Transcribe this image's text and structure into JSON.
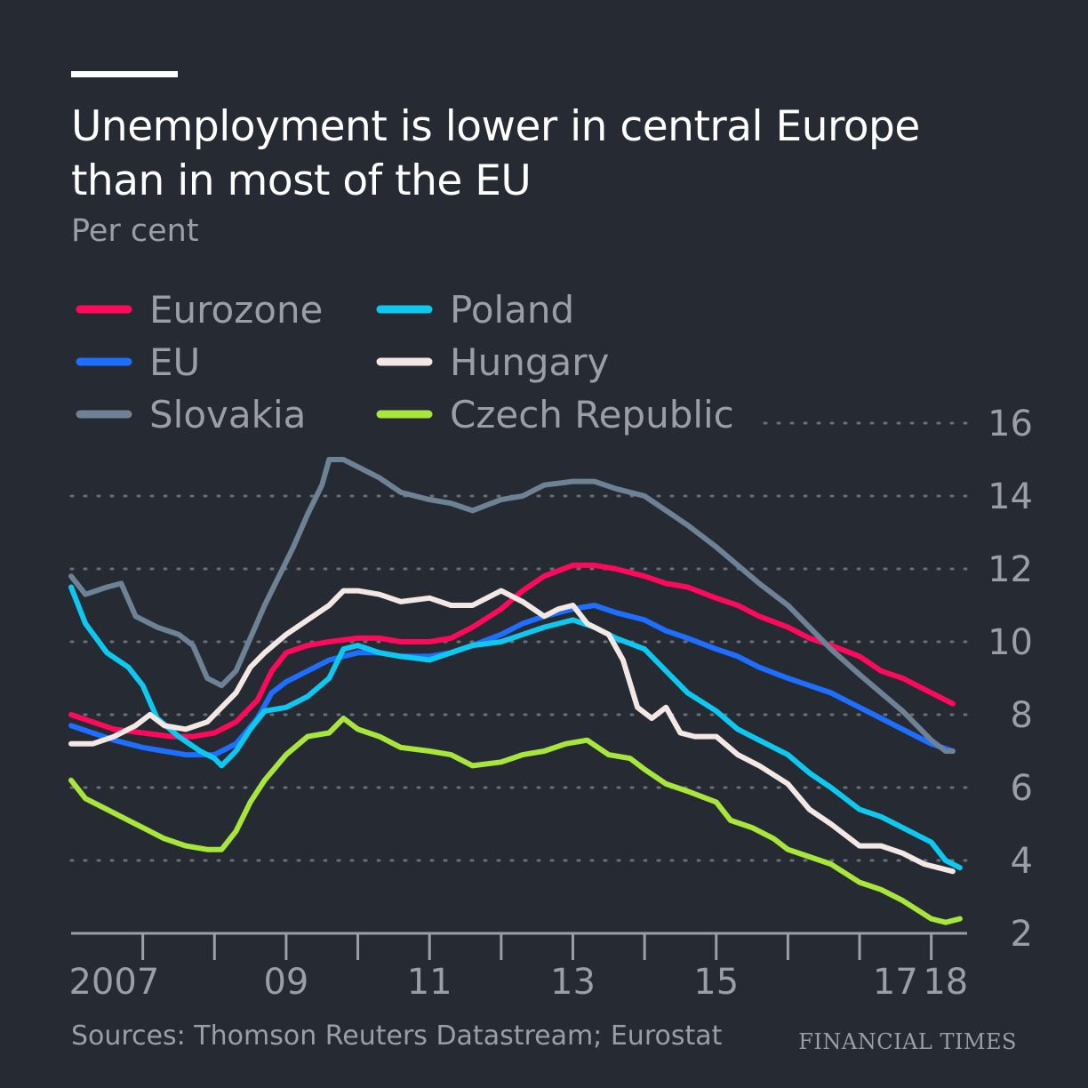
{
  "header": {
    "title": "Unemployment is lower in central Europe than in most of the EU",
    "subtitle": "Per cent"
  },
  "footer": {
    "source": "Sources: Thomson Reuters Datastream; Eurostat",
    "brand": "FINANCIAL TIMES"
  },
  "colors": {
    "background": "#262a33",
    "grid": "#6b6e75",
    "axis": "#9b9ea4",
    "text": "#9b9ea4"
  },
  "chart_data": {
    "type": "line",
    "title": "Unemployment is lower in central Europe than in most of the EU",
    "ylabel": "Per cent",
    "xlabel": "",
    "ylim": [
      2,
      16
    ],
    "xlim": [
      2006.0,
      2018.5
    ],
    "y_ticks": [
      2,
      4,
      6,
      8,
      10,
      12,
      14,
      16
    ],
    "y_tick_labels": [
      "2",
      "4",
      "6",
      "8",
      "10",
      "12",
      "14",
      "16"
    ],
    "x_ticks": [
      2007,
      2008,
      2009,
      2010,
      2011,
      2012,
      2013,
      2014,
      2015,
      2016,
      2017,
      2018
    ],
    "x_tick_labels": [
      {
        "label": "2007",
        "x": 2006.6
      },
      {
        "label": "09",
        "x": 2009.0
      },
      {
        "label": "11",
        "x": 2011.0
      },
      {
        "label": "13",
        "x": 2013.0
      },
      {
        "label": "15",
        "x": 2015.0
      },
      {
        "label": "17",
        "x": 2017.5
      },
      {
        "label": "18",
        "x": 2018.2
      }
    ],
    "grid": true,
    "legend_position": "top-left",
    "series": [
      {
        "name": "Eurozone",
        "color": "#ff0a5a",
        "points": [
          [
            2006.0,
            8.0
          ],
          [
            2006.3,
            7.8
          ],
          [
            2006.6,
            7.6
          ],
          [
            2007.0,
            7.5
          ],
          [
            2007.4,
            7.4
          ],
          [
            2007.7,
            7.4
          ],
          [
            2008.0,
            7.5
          ],
          [
            2008.3,
            7.8
          ],
          [
            2008.6,
            8.4
          ],
          [
            2008.8,
            9.2
          ],
          [
            2009.0,
            9.7
          ],
          [
            2009.3,
            9.9
          ],
          [
            2009.6,
            10.0
          ],
          [
            2010.0,
            10.1
          ],
          [
            2010.3,
            10.1
          ],
          [
            2010.6,
            10.0
          ],
          [
            2011.0,
            10.0
          ],
          [
            2011.3,
            10.1
          ],
          [
            2011.6,
            10.4
          ],
          [
            2012.0,
            10.9
          ],
          [
            2012.3,
            11.4
          ],
          [
            2012.6,
            11.8
          ],
          [
            2013.0,
            12.1
          ],
          [
            2013.3,
            12.1
          ],
          [
            2013.6,
            12.0
          ],
          [
            2014.0,
            11.8
          ],
          [
            2014.3,
            11.6
          ],
          [
            2014.6,
            11.5
          ],
          [
            2015.0,
            11.2
          ],
          [
            2015.3,
            11.0
          ],
          [
            2015.6,
            10.7
          ],
          [
            2016.0,
            10.4
          ],
          [
            2016.3,
            10.1
          ],
          [
            2016.6,
            9.9
          ],
          [
            2017.0,
            9.6
          ],
          [
            2017.3,
            9.2
          ],
          [
            2017.6,
            9.0
          ],
          [
            2018.0,
            8.6
          ],
          [
            2018.2,
            8.4
          ],
          [
            2018.3,
            8.3
          ]
        ]
      },
      {
        "name": "EU",
        "color": "#1e6eff",
        "points": [
          [
            2006.0,
            7.7
          ],
          [
            2006.3,
            7.5
          ],
          [
            2006.6,
            7.3
          ],
          [
            2007.0,
            7.1
          ],
          [
            2007.3,
            7.0
          ],
          [
            2007.6,
            6.9
          ],
          [
            2008.0,
            6.9
          ],
          [
            2008.3,
            7.2
          ],
          [
            2008.6,
            7.9
          ],
          [
            2008.8,
            8.6
          ],
          [
            2009.0,
            8.9
          ],
          [
            2009.3,
            9.2
          ],
          [
            2009.6,
            9.5
          ],
          [
            2010.0,
            9.7
          ],
          [
            2010.3,
            9.7
          ],
          [
            2010.6,
            9.6
          ],
          [
            2011.0,
            9.6
          ],
          [
            2011.3,
            9.7
          ],
          [
            2011.6,
            9.9
          ],
          [
            2012.0,
            10.2
          ],
          [
            2012.3,
            10.5
          ],
          [
            2012.6,
            10.7
          ],
          [
            2013.0,
            10.9
          ],
          [
            2013.3,
            11.0
          ],
          [
            2013.6,
            10.8
          ],
          [
            2014.0,
            10.6
          ],
          [
            2014.3,
            10.3
          ],
          [
            2014.6,
            10.1
          ],
          [
            2015.0,
            9.8
          ],
          [
            2015.3,
            9.6
          ],
          [
            2015.6,
            9.3
          ],
          [
            2016.0,
            9.0
          ],
          [
            2016.3,
            8.8
          ],
          [
            2016.6,
            8.6
          ],
          [
            2017.0,
            8.2
          ],
          [
            2017.3,
            7.9
          ],
          [
            2017.6,
            7.6
          ],
          [
            2018.0,
            7.2
          ],
          [
            2018.3,
            7.0
          ]
        ]
      },
      {
        "name": "Slovakia",
        "color": "#6e8296",
        "points": [
          [
            2006.0,
            11.8
          ],
          [
            2006.2,
            11.3
          ],
          [
            2006.5,
            11.5
          ],
          [
            2006.7,
            11.6
          ],
          [
            2006.9,
            10.7
          ],
          [
            2007.2,
            10.4
          ],
          [
            2007.5,
            10.2
          ],
          [
            2007.7,
            9.9
          ],
          [
            2007.9,
            9.0
          ],
          [
            2008.1,
            8.8
          ],
          [
            2008.3,
            9.2
          ],
          [
            2008.5,
            10.1
          ],
          [
            2008.7,
            11.0
          ],
          [
            2008.9,
            11.8
          ],
          [
            2009.1,
            12.6
          ],
          [
            2009.3,
            13.5
          ],
          [
            2009.5,
            14.3
          ],
          [
            2009.6,
            15.0
          ],
          [
            2009.8,
            15.0
          ],
          [
            2010.0,
            14.8
          ],
          [
            2010.3,
            14.5
          ],
          [
            2010.6,
            14.1
          ],
          [
            2011.0,
            13.9
          ],
          [
            2011.3,
            13.8
          ],
          [
            2011.6,
            13.6
          ],
          [
            2012.0,
            13.9
          ],
          [
            2012.3,
            14.0
          ],
          [
            2012.6,
            14.3
          ],
          [
            2013.0,
            14.4
          ],
          [
            2013.3,
            14.4
          ],
          [
            2013.6,
            14.2
          ],
          [
            2014.0,
            14.0
          ],
          [
            2014.3,
            13.6
          ],
          [
            2014.6,
            13.2
          ],
          [
            2015.0,
            12.6
          ],
          [
            2015.3,
            12.1
          ],
          [
            2015.6,
            11.6
          ],
          [
            2016.0,
            11.0
          ],
          [
            2016.3,
            10.4
          ],
          [
            2016.6,
            9.8
          ],
          [
            2017.0,
            9.1
          ],
          [
            2017.3,
            8.6
          ],
          [
            2017.6,
            8.1
          ],
          [
            2018.0,
            7.3
          ],
          [
            2018.2,
            7.0
          ],
          [
            2018.3,
            7.0
          ]
        ]
      },
      {
        "name": "Poland",
        "color": "#0fc8f0",
        "points": [
          [
            2006.0,
            11.5
          ],
          [
            2006.2,
            10.5
          ],
          [
            2006.5,
            9.7
          ],
          [
            2006.8,
            9.3
          ],
          [
            2007.0,
            8.8
          ],
          [
            2007.2,
            7.9
          ],
          [
            2007.5,
            7.4
          ],
          [
            2007.8,
            7.0
          ],
          [
            2008.0,
            6.8
          ],
          [
            2008.1,
            6.6
          ],
          [
            2008.3,
            7.0
          ],
          [
            2008.5,
            7.6
          ],
          [
            2008.7,
            8.1
          ],
          [
            2009.0,
            8.2
          ],
          [
            2009.3,
            8.5
          ],
          [
            2009.6,
            9.0
          ],
          [
            2009.8,
            9.8
          ],
          [
            2010.0,
            9.9
          ],
          [
            2010.3,
            9.7
          ],
          [
            2010.6,
            9.6
          ],
          [
            2011.0,
            9.5
          ],
          [
            2011.3,
            9.7
          ],
          [
            2011.6,
            9.9
          ],
          [
            2012.0,
            10.0
          ],
          [
            2012.3,
            10.2
          ],
          [
            2012.6,
            10.4
          ],
          [
            2013.0,
            10.6
          ],
          [
            2013.3,
            10.4
          ],
          [
            2013.6,
            10.1
          ],
          [
            2014.0,
            9.8
          ],
          [
            2014.3,
            9.2
          ],
          [
            2014.6,
            8.6
          ],
          [
            2015.0,
            8.1
          ],
          [
            2015.3,
            7.6
          ],
          [
            2015.6,
            7.3
          ],
          [
            2016.0,
            6.9
          ],
          [
            2016.3,
            6.4
          ],
          [
            2016.6,
            6.0
          ],
          [
            2017.0,
            5.4
          ],
          [
            2017.3,
            5.2
          ],
          [
            2017.6,
            4.9
          ],
          [
            2018.0,
            4.5
          ],
          [
            2018.2,
            4.0
          ],
          [
            2018.4,
            3.8
          ]
        ]
      },
      {
        "name": "Hungary",
        "color": "#f3e8e3",
        "points": [
          [
            2006.0,
            7.2
          ],
          [
            2006.3,
            7.2
          ],
          [
            2006.6,
            7.4
          ],
          [
            2006.9,
            7.7
          ],
          [
            2007.1,
            8.0
          ],
          [
            2007.3,
            7.7
          ],
          [
            2007.6,
            7.6
          ],
          [
            2007.9,
            7.8
          ],
          [
            2008.1,
            8.2
          ],
          [
            2008.3,
            8.6
          ],
          [
            2008.5,
            9.3
          ],
          [
            2008.7,
            9.7
          ],
          [
            2009.0,
            10.2
          ],
          [
            2009.3,
            10.6
          ],
          [
            2009.6,
            11.0
          ],
          [
            2009.8,
            11.4
          ],
          [
            2010.0,
            11.4
          ],
          [
            2010.3,
            11.3
          ],
          [
            2010.6,
            11.1
          ],
          [
            2011.0,
            11.2
          ],
          [
            2011.3,
            11.0
          ],
          [
            2011.6,
            11.0
          ],
          [
            2012.0,
            11.4
          ],
          [
            2012.3,
            11.1
          ],
          [
            2012.6,
            10.7
          ],
          [
            2012.8,
            10.9
          ],
          [
            2013.0,
            11.0
          ],
          [
            2013.2,
            10.5
          ],
          [
            2013.5,
            10.2
          ],
          [
            2013.7,
            9.5
          ],
          [
            2013.9,
            8.2
          ],
          [
            2014.1,
            7.9
          ],
          [
            2014.3,
            8.2
          ],
          [
            2014.5,
            7.5
          ],
          [
            2014.7,
            7.4
          ],
          [
            2015.0,
            7.4
          ],
          [
            2015.3,
            6.9
          ],
          [
            2015.6,
            6.6
          ],
          [
            2016.0,
            6.1
          ],
          [
            2016.3,
            5.4
          ],
          [
            2016.6,
            5.0
          ],
          [
            2017.0,
            4.4
          ],
          [
            2017.3,
            4.4
          ],
          [
            2017.6,
            4.2
          ],
          [
            2017.9,
            3.9
          ],
          [
            2018.1,
            3.8
          ],
          [
            2018.3,
            3.7
          ]
        ]
      },
      {
        "name": "Czech Republic",
        "color": "#a8e63c",
        "points": [
          [
            2006.0,
            6.2
          ],
          [
            2006.2,
            5.7
          ],
          [
            2006.5,
            5.4
          ],
          [
            2006.8,
            5.1
          ],
          [
            2007.0,
            4.9
          ],
          [
            2007.3,
            4.6
          ],
          [
            2007.6,
            4.4
          ],
          [
            2007.9,
            4.3
          ],
          [
            2008.1,
            4.3
          ],
          [
            2008.3,
            4.8
          ],
          [
            2008.5,
            5.6
          ],
          [
            2008.7,
            6.2
          ],
          [
            2009.0,
            6.9
          ],
          [
            2009.3,
            7.4
          ],
          [
            2009.6,
            7.5
          ],
          [
            2009.8,
            7.9
          ],
          [
            2010.0,
            7.6
          ],
          [
            2010.3,
            7.4
          ],
          [
            2010.6,
            7.1
          ],
          [
            2011.0,
            7.0
          ],
          [
            2011.3,
            6.9
          ],
          [
            2011.6,
            6.6
          ],
          [
            2012.0,
            6.7
          ],
          [
            2012.3,
            6.9
          ],
          [
            2012.6,
            7.0
          ],
          [
            2012.9,
            7.2
          ],
          [
            2013.2,
            7.3
          ],
          [
            2013.5,
            6.9
          ],
          [
            2013.8,
            6.8
          ],
          [
            2014.0,
            6.5
          ],
          [
            2014.3,
            6.1
          ],
          [
            2014.6,
            5.9
          ],
          [
            2015.0,
            5.6
          ],
          [
            2015.2,
            5.1
          ],
          [
            2015.5,
            4.9
          ],
          [
            2015.8,
            4.6
          ],
          [
            2016.0,
            4.3
          ],
          [
            2016.3,
            4.1
          ],
          [
            2016.6,
            3.9
          ],
          [
            2017.0,
            3.4
          ],
          [
            2017.3,
            3.2
          ],
          [
            2017.6,
            2.9
          ],
          [
            2018.0,
            2.4
          ],
          [
            2018.2,
            2.3
          ],
          [
            2018.4,
            2.4
          ]
        ]
      }
    ]
  }
}
